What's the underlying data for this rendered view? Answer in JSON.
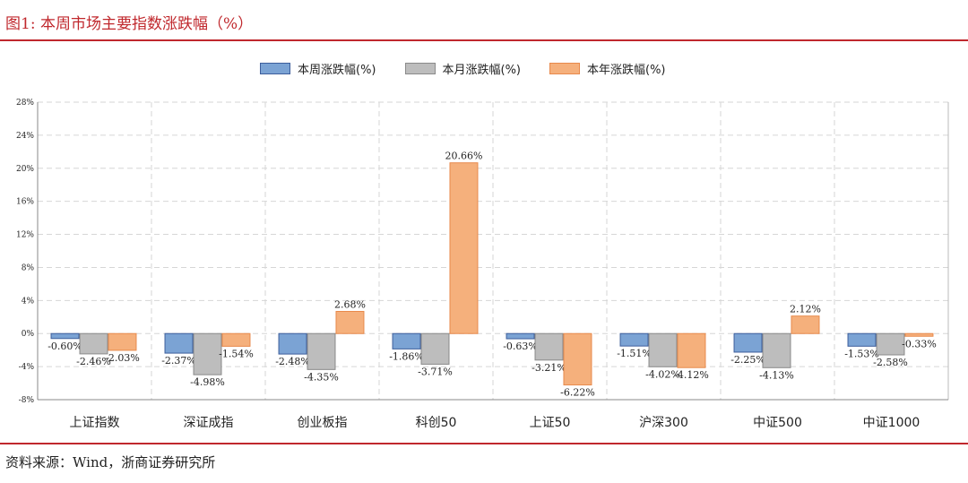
{
  "title": "图1:   本周市场主要指数涨跌幅（%）",
  "source": "资料来源：Wind，浙商证券研究所",
  "colors": {
    "brand_red": "#c0282d",
    "weekly_fill": "#7ba3d4",
    "weekly_stroke": "#3d5e9c",
    "monthly_fill": "#bdbdbd",
    "monthly_stroke": "#8a8a8a",
    "yearly_fill": "#f5b07c",
    "yearly_stroke": "#e88a4c"
  },
  "chart_data": {
    "type": "bar",
    "categories": [
      "上证指数",
      "深证成指",
      "创业板指",
      "科创50",
      "上证50",
      "沪深300",
      "中证500",
      "中证1000"
    ],
    "series": [
      {
        "name": "本周涨跌幅(%)",
        "values": [
          -0.6,
          -2.37,
          -2.48,
          -1.86,
          -0.63,
          -1.51,
          -2.25,
          -1.53
        ],
        "labels": [
          "-0.60%",
          "-2.37%",
          "-2.48%",
          "-1.86%",
          "-0.63%",
          "-1.51%",
          "-2.25%",
          "-1.53%"
        ]
      },
      {
        "name": "本月涨跌幅(%)",
        "values": [
          -2.46,
          -4.98,
          -4.35,
          -3.71,
          -3.21,
          -4.02,
          -4.13,
          -2.58
        ],
        "labels": [
          "-2.46%",
          "-4.98%",
          "-4.35%",
          "-3.71%",
          "-3.21%",
          "-4.02%",
          "-4.13%",
          "-2.58%"
        ]
      },
      {
        "name": "本年涨跌幅(%)",
        "values": [
          -2.03,
          -1.54,
          2.68,
          20.66,
          -6.22,
          -4.12,
          2.12,
          -0.33
        ],
        "labels": [
          "-2.03%",
          "-1.54%",
          "2.68%",
          "20.66%",
          "-6.22%",
          "-4.12%",
          "2.12%",
          "-0.33%"
        ]
      }
    ],
    "ylim": [
      -8,
      28
    ],
    "yticks": [
      -8,
      -4,
      0,
      4,
      8,
      12,
      16,
      20,
      24,
      28
    ],
    "ytick_labels": [
      "-8%",
      "-4%",
      "0%",
      "4%",
      "8%",
      "12%",
      "16%",
      "20%",
      "24%",
      "28%"
    ],
    "grid": true,
    "legend_position": "top-center"
  }
}
